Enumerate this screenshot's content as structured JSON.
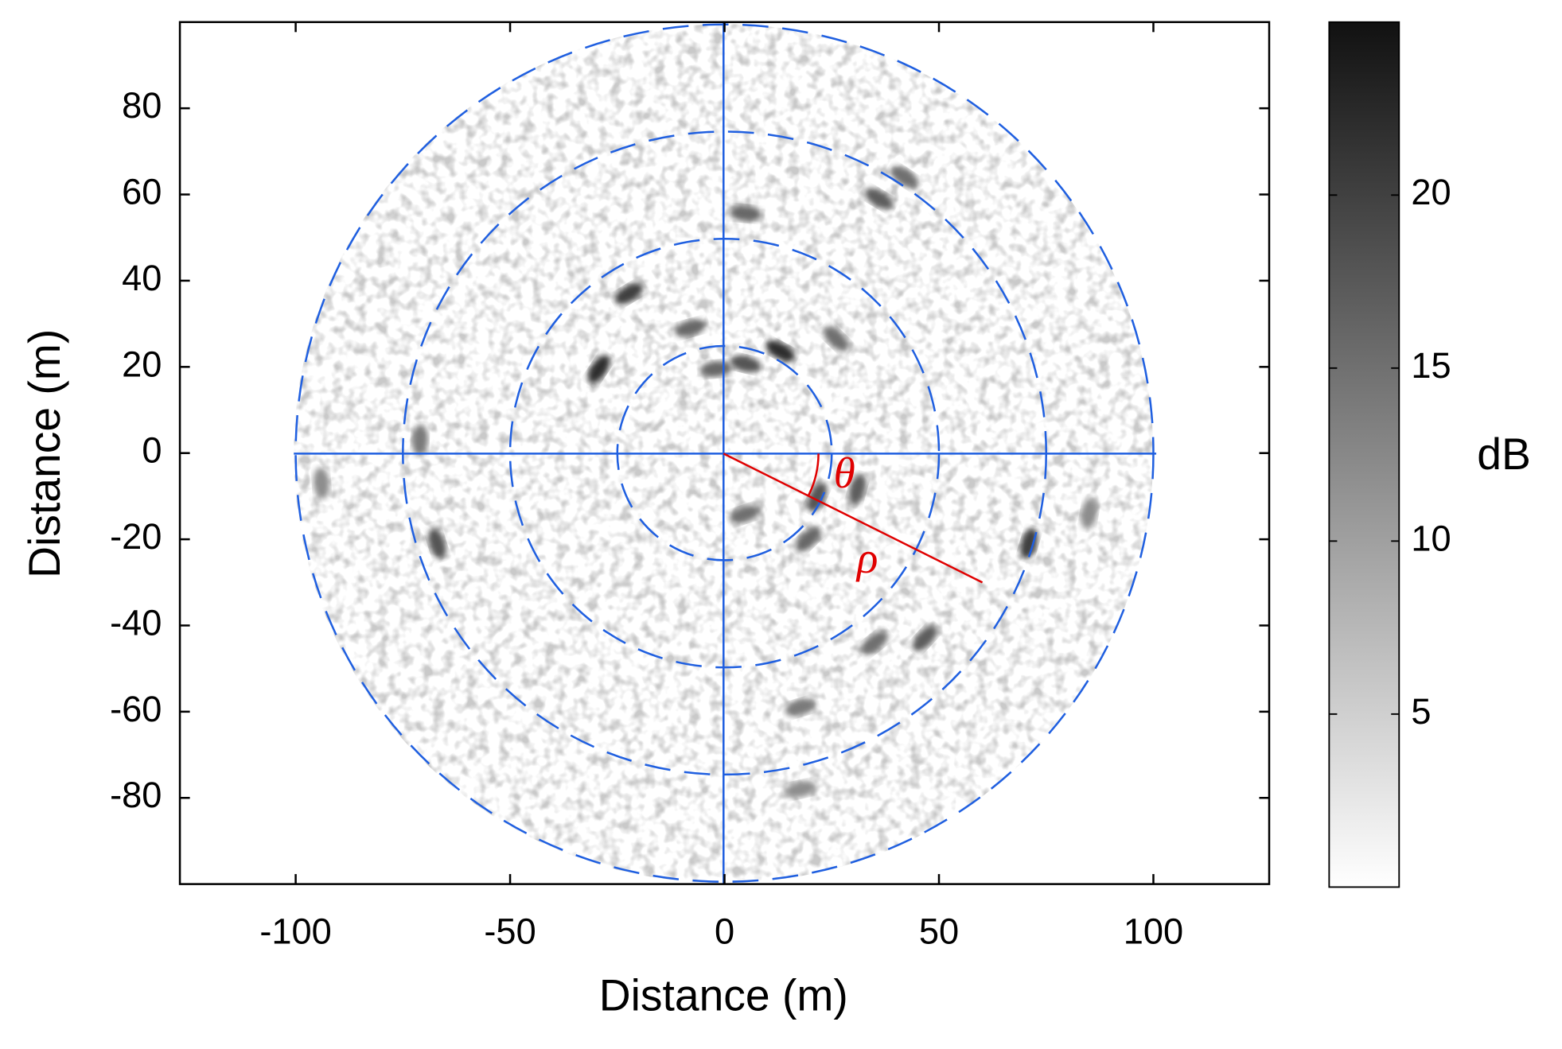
{
  "chart_data": {
    "type": "heatmap",
    "xlabel": "Distance (m)",
    "ylabel": "Distance (m)",
    "colorbar_label": "dB",
    "xlim": [
      -127,
      127
    ],
    "ylim": [
      -100,
      100
    ],
    "xticks": [
      -100,
      -50,
      0,
      50,
      100
    ],
    "yticks": [
      -80,
      -60,
      -40,
      -20,
      0,
      20,
      40,
      60,
      80
    ],
    "clim": [
      0,
      25
    ],
    "cticks": [
      5,
      10,
      15,
      20
    ],
    "colormap": [
      "#ffffff",
      "#111111"
    ],
    "rings": [
      25,
      50,
      75,
      100
    ],
    "ring_color": "#1f5fe0",
    "annotations": [
      "θ",
      "ρ"
    ],
    "x": [
      -29.3,
      -22.3,
      13,
      4.9,
      -2,
      4.7,
      21.6,
      31,
      19.5,
      71,
      -67,
      35,
      46.7,
      17.7,
      17.7,
      4.9,
      36,
      42,
      -8,
      -71,
      -94,
      26,
      85
    ],
    "y": [
      19.5,
      37,
      23.7,
      20.7,
      19.5,
      -14.2,
      -10.2,
      -8.4,
      -20,
      -21,
      -21,
      -44,
      -43,
      -59,
      -78,
      55.6,
      59,
      64,
      29,
      3,
      -7,
      26.5,
      -14
    ],
    "values": [
      22,
      20,
      22,
      18,
      16,
      15,
      18,
      17,
      16,
      20,
      18,
      15,
      17,
      14,
      12,
      16,
      17,
      15,
      16,
      14,
      12,
      15,
      12
    ]
  }
}
